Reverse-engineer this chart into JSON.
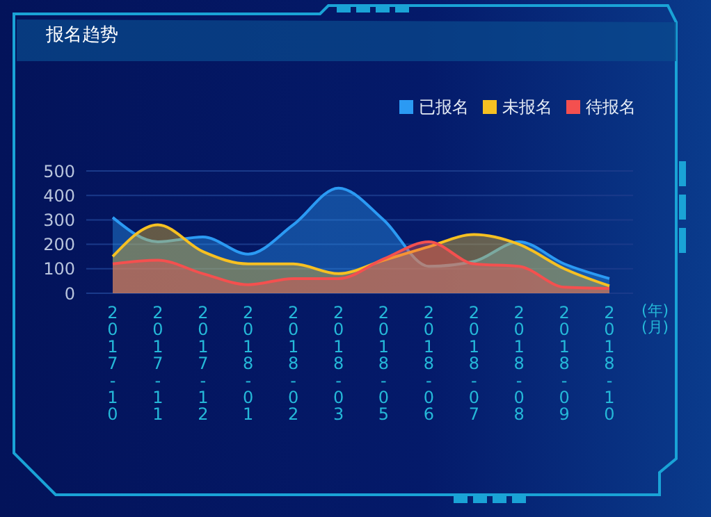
{
  "chart_data": {
    "type": "area",
    "title": "报名趋势",
    "xlabel": "(年)\n(月)",
    "categories": [
      "2017-10",
      "2017-11",
      "2017-12",
      "2018-01",
      "2018-02",
      "2018-03",
      "2018-05",
      "2018-06",
      "2018-07",
      "2018-08",
      "2018-09",
      "2018-10"
    ],
    "series": [
      {
        "name": "已报名",
        "color": "#2b9af3",
        "values": [
          310,
          210,
          230,
          160,
          280,
          430,
          300,
          110,
          130,
          210,
          120,
          60
        ]
      },
      {
        "name": "未报名",
        "color": "#f6c022",
        "values": [
          150,
          280,
          170,
          120,
          120,
          80,
          135,
          190,
          240,
          200,
          100,
          30
        ]
      },
      {
        "name": "待报名",
        "color": "#f4504f",
        "values": [
          120,
          135,
          80,
          35,
          60,
          60,
          140,
          210,
          120,
          110,
          25,
          20
        ]
      }
    ],
    "ylim": [
      0,
      500
    ],
    "yticks": [
      0,
      100,
      200,
      300,
      400,
      500
    ],
    "grid": "y",
    "legend": "top right",
    "marker": "none",
    "line_style": "solid"
  }
}
